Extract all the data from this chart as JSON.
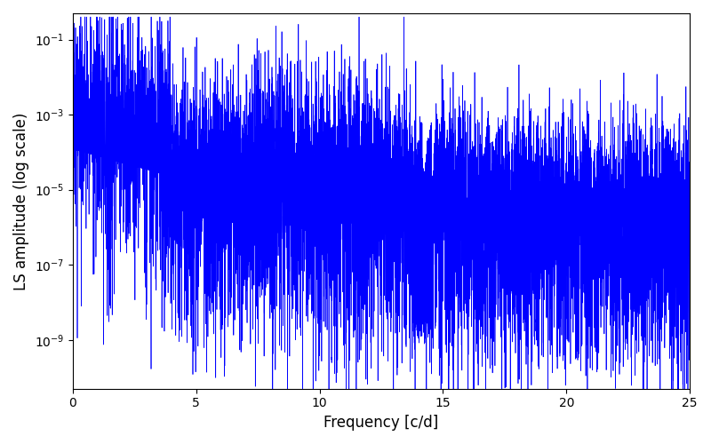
{
  "title": "",
  "xlabel": "Frequency [c/d]",
  "ylabel": "LS amplitude (log scale)",
  "xlim": [
    0,
    25
  ],
  "ylim_low": 5e-11,
  "ylim_high": 0.5,
  "line_color": "#0000ff",
  "line_width": 0.5,
  "background_color": "#ffffff",
  "freq_max": 25.0,
  "n_points": 8000,
  "seed": 7
}
